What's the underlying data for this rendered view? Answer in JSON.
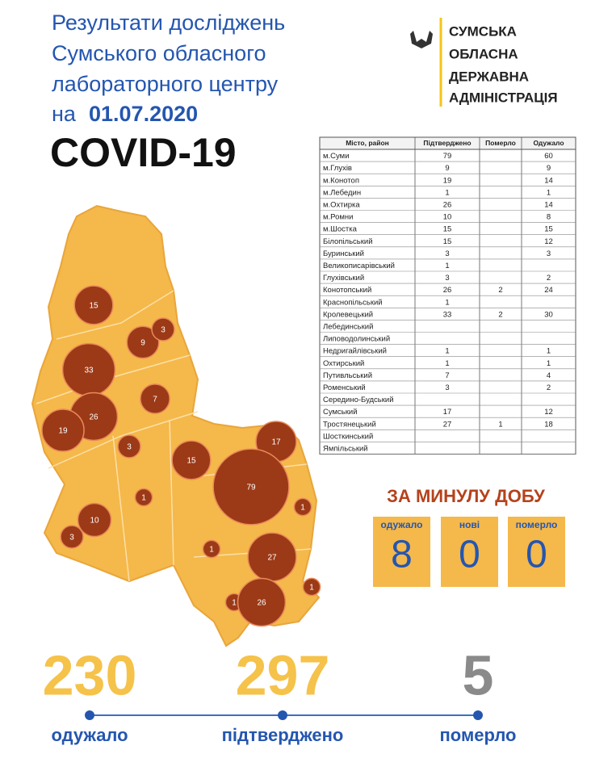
{
  "header": {
    "title": [
      "Результати досліджень",
      "Сумського обласного",
      "лабораторного центру"
    ],
    "date_prefix": "на",
    "date": "01.07.2020",
    "subject": "COVID-19"
  },
  "logo": {
    "lines": [
      "СУМСЬКА",
      "ОБЛАСНА",
      "ДЕРЖАВНА",
      "АДМІНІСТРАЦІЯ"
    ]
  },
  "table": {
    "columns": [
      "Місто, район",
      "Підтверджено",
      "Померло",
      "Одужало"
    ],
    "rows": [
      [
        "м.Суми",
        79,
        null,
        60
      ],
      [
        "м.Глухів",
        9,
        null,
        9
      ],
      [
        "м.Конотоп",
        19,
        null,
        14
      ],
      [
        "м.Лебедин",
        1,
        null,
        1
      ],
      [
        "м.Охтирка",
        26,
        null,
        14
      ],
      [
        "м.Ромни",
        10,
        null,
        8
      ],
      [
        "м.Шостка",
        15,
        null,
        15
      ],
      [
        "Білопільський",
        15,
        null,
        12
      ],
      [
        "Буринський",
        3,
        null,
        3
      ],
      [
        "Великописарівський",
        1,
        null,
        null
      ],
      [
        "Глухівський",
        3,
        null,
        2
      ],
      [
        "Конотопський",
        26,
        2,
        24
      ],
      [
        "Краснопільський",
        1,
        null,
        null
      ],
      [
        "Кролевецький",
        33,
        2,
        30
      ],
      [
        "Лебединський",
        null,
        null,
        null
      ],
      [
        "Липоводолинський",
        null,
        null,
        null
      ],
      [
        "Недригайлівський",
        1,
        null,
        1
      ],
      [
        "Охтирський",
        1,
        null,
        1
      ],
      [
        "Путивльський",
        7,
        null,
        4
      ],
      [
        "Роменський",
        3,
        null,
        2
      ],
      [
        "Середино-Будський",
        null,
        null,
        null
      ],
      [
        "Сумський",
        17,
        null,
        12
      ],
      [
        "Тростянецький",
        27,
        1,
        18
      ],
      [
        "Шосткинський",
        null,
        null,
        null
      ],
      [
        "Ямпільський",
        null,
        null,
        null
      ]
    ]
  },
  "map": {
    "bubbles": [
      15,
      9,
      3,
      33,
      7,
      26,
      19,
      3,
      15,
      17,
      79,
      1,
      10,
      1,
      1,
      3,
      27,
      1,
      1,
      26
    ]
  },
  "daily": {
    "title": "ЗА МИНУЛУ ДОБУ",
    "items": [
      {
        "label": "одужало",
        "value": 8
      },
      {
        "label": "нові",
        "value": 0
      },
      {
        "label": "померло",
        "value": 0
      }
    ]
  },
  "totals": [
    {
      "label": "одужало",
      "value": 230
    },
    {
      "label": "підтверджено",
      "value": 297
    },
    {
      "label": "померло",
      "value": 5
    }
  ]
}
